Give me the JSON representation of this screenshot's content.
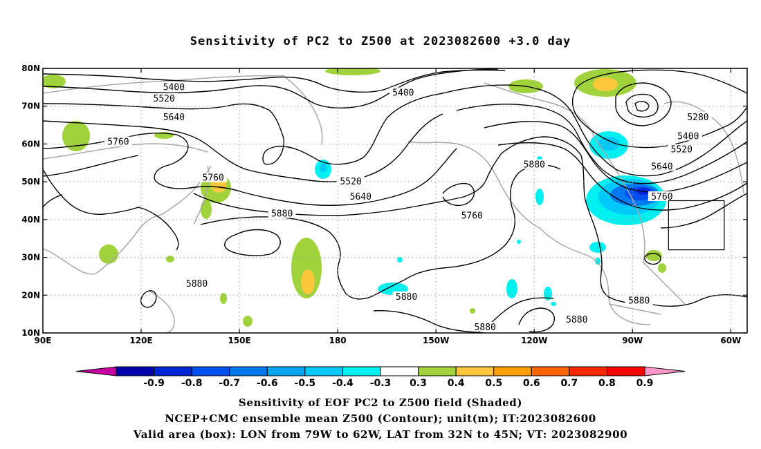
{
  "title": "Sensitivity of PC2 to Z500 at 2023082600 +3.0 day",
  "map": {
    "lon_range": [
      90,
      305
    ],
    "lat_range": [
      10,
      80
    ],
    "x_ticks": [
      {
        "lon": 90,
        "label": "90E"
      },
      {
        "lon": 120,
        "label": "120E"
      },
      {
        "lon": 150,
        "label": "150E"
      },
      {
        "lon": 180,
        "label": "180"
      },
      {
        "lon": 210,
        "label": "150W"
      },
      {
        "lon": 240,
        "label": "120W"
      },
      {
        "lon": 270,
        "label": "90W"
      },
      {
        "lon": 300,
        "label": "60W"
      }
    ],
    "y_ticks": [
      {
        "lat": 10,
        "label": "10N"
      },
      {
        "lat": 20,
        "label": "20N"
      },
      {
        "lat": 30,
        "label": "30N"
      },
      {
        "lat": 40,
        "label": "40N"
      },
      {
        "lat": 50,
        "label": "50N"
      },
      {
        "lat": 60,
        "label": "60N"
      },
      {
        "lat": 70,
        "label": "70N"
      },
      {
        "lat": 80,
        "label": "80N"
      }
    ],
    "grid": "dotted",
    "valid_box": {
      "lon_w": 281,
      "lon_e": 298,
      "lat_s": 32,
      "lat_n": 45
    },
    "contour_labels": [
      {
        "text": "5400",
        "lon": 130,
        "lat": 75
      },
      {
        "text": "5520",
        "lon": 127,
        "lat": 72
      },
      {
        "text": "5640",
        "lon": 130,
        "lat": 67
      },
      {
        "text": "5760",
        "lon": 113,
        "lat": 60.5
      },
      {
        "text": "5760",
        "lon": 142,
        "lat": 51
      },
      {
        "text": "5880",
        "lon": 163,
        "lat": 41.5
      },
      {
        "text": "5880",
        "lon": 137,
        "lat": 23
      },
      {
        "text": "5400",
        "lon": 200,
        "lat": 73.5
      },
      {
        "text": "5520",
        "lon": 184,
        "lat": 50
      },
      {
        "text": "5640",
        "lon": 187,
        "lat": 46
      },
      {
        "text": "5760",
        "lon": 221,
        "lat": 41
      },
      {
        "text": "5880",
        "lon": 240,
        "lat": 54.5
      },
      {
        "text": "5880",
        "lon": 201,
        "lat": 19.5
      },
      {
        "text": "5880",
        "lon": 225,
        "lat": 11.5
      },
      {
        "text": "5880",
        "lon": 253,
        "lat": 13.5
      },
      {
        "text": "5880",
        "lon": 272,
        "lat": 18.5
      },
      {
        "text": "5280",
        "lon": 290,
        "lat": 67
      },
      {
        "text": "5400",
        "lon": 287,
        "lat": 62
      },
      {
        "text": "5520",
        "lon": 285,
        "lat": 58.5
      },
      {
        "text": "5640",
        "lon": 279,
        "lat": 54
      },
      {
        "text": "5760",
        "lon": 279,
        "lat": 46
      }
    ]
  },
  "colorbar": {
    "labels": [
      "-0.9",
      "-0.8",
      "-0.7",
      "-0.6",
      "-0.5",
      "-0.4",
      "-0.3",
      "0.3",
      "0.4",
      "0.5",
      "0.6",
      "0.7",
      "0.8",
      "0.9"
    ],
    "colors": [
      "#0000aa",
      "#0024d8",
      "#0050f0",
      "#0078f0",
      "#00a6f0",
      "#00c8f8",
      "#00f0f0",
      "#ffffff",
      "#a0d23c",
      "#ffc83c",
      "#ffa000",
      "#ff6400",
      "#ff2800",
      "#ff0000"
    ],
    "low_arrow_color": "#c800a0",
    "high_arrow_color": "#ff96c8"
  },
  "captions": {
    "line1": "Sensitivity of EOF PC2 to Z500 field (Shaded)",
    "line2": "NCEP+CMC ensemble mean Z500 (Contour); unit(m); IT:2023082600",
    "line3": "Valid area (box): LON from 79W to 62W, LAT from 32N to 45N; VT: 2023082900"
  }
}
